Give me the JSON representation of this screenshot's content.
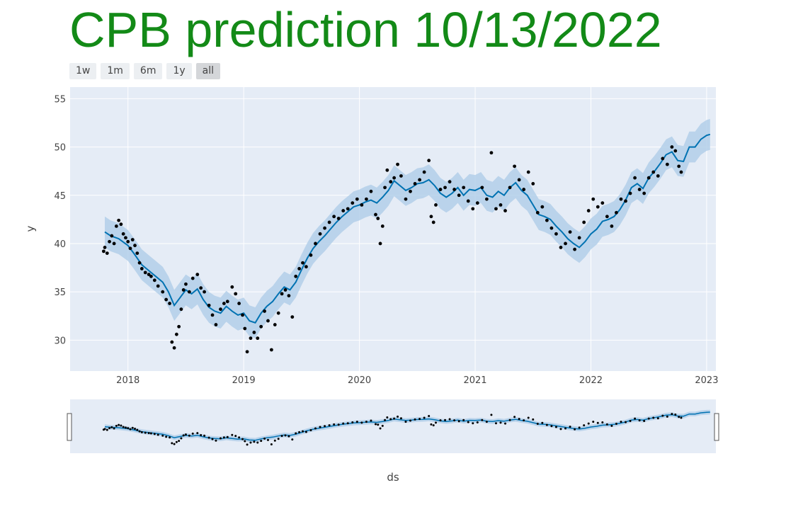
{
  "title": "CPB prediction 10/13/2022",
  "range_selector": [
    {
      "label": "1w",
      "active": false
    },
    {
      "label": "1m",
      "active": false
    },
    {
      "label": "6m",
      "active": false
    },
    {
      "label": "1y",
      "active": false
    },
    {
      "label": "all",
      "active": true
    }
  ],
  "colors": {
    "title": "#138a17",
    "plot_bg": "#e5ecf6",
    "forecast_line": "#0072b2",
    "uncertainty_band": "#b3cfe9",
    "actual_points": "#000000"
  },
  "chart_data": {
    "type": "line",
    "xlabel": "ds",
    "ylabel": "y",
    "xlim": [
      2017.5,
      2023.08
    ],
    "ylim": [
      26.8,
      56.2
    ],
    "x_ticks": [
      "2018",
      "2019",
      "2020",
      "2021",
      "2022",
      "2023"
    ],
    "y_ticks": [
      30,
      35,
      40,
      45,
      50,
      55
    ],
    "grid": true,
    "rangeslider": true,
    "series": [
      {
        "kind": "forecast",
        "x": [
          2017.8,
          2017.85,
          2017.92,
          2018.0,
          2018.05,
          2018.12,
          2018.2,
          2018.25,
          2018.3,
          2018.35,
          2018.4,
          2018.45,
          2018.5,
          2018.55,
          2018.6,
          2018.65,
          2018.7,
          2018.75,
          2018.8,
          2018.85,
          2018.9,
          2018.95,
          2019.0,
          2019.05,
          2019.1,
          2019.15,
          2019.2,
          2019.25,
          2019.3,
          2019.35,
          2019.4,
          2019.45,
          2019.5,
          2019.55,
          2019.6,
          2019.65,
          2019.7,
          2019.75,
          2019.8,
          2019.85,
          2019.9,
          2019.95,
          2020.0,
          2020.05,
          2020.1,
          2020.15,
          2020.2,
          2020.25,
          2020.3,
          2020.35,
          2020.4,
          2020.45,
          2020.5,
          2020.55,
          2020.6,
          2020.65,
          2020.7,
          2020.75,
          2020.8,
          2020.85,
          2020.9,
          2020.95,
          2021.0,
          2021.05,
          2021.1,
          2021.15,
          2021.2,
          2021.25,
          2021.3,
          2021.35,
          2021.4,
          2021.45,
          2021.5,
          2021.55,
          2021.6,
          2021.65,
          2021.7,
          2021.75,
          2021.8,
          2021.85,
          2021.9,
          2021.95,
          2022.0,
          2022.05,
          2022.1,
          2022.15,
          2022.2,
          2022.25,
          2022.3,
          2022.35,
          2022.4,
          2022.45,
          2022.5,
          2022.55,
          2022.6,
          2022.65,
          2022.7,
          2022.75,
          2022.8,
          2022.85,
          2022.9,
          2022.95,
          2023.0,
          2023.03
        ],
        "y": [
          41.2,
          40.8,
          40.5,
          39.8,
          39.0,
          37.8,
          37.0,
          36.5,
          36.0,
          35.0,
          33.6,
          34.4,
          35.2,
          34.8,
          35.3,
          34.2,
          33.4,
          33.0,
          32.8,
          33.5,
          33.0,
          32.6,
          32.8,
          32.0,
          31.8,
          32.8,
          33.5,
          34.0,
          34.8,
          35.5,
          35.2,
          36.0,
          37.3,
          38.5,
          39.5,
          40.2,
          40.8,
          41.5,
          42.2,
          42.8,
          43.3,
          43.8,
          44.0,
          44.3,
          44.5,
          44.2,
          44.8,
          45.5,
          46.5,
          46.0,
          45.5,
          45.8,
          46.2,
          46.3,
          46.6,
          46.0,
          45.2,
          44.8,
          45.2,
          45.8,
          45.0,
          45.6,
          45.5,
          45.8,
          45.0,
          44.8,
          45.4,
          45.0,
          45.8,
          46.3,
          45.5,
          45.0,
          44.0,
          43.0,
          42.8,
          42.5,
          41.8,
          41.2,
          40.5,
          40.0,
          39.6,
          40.2,
          41.0,
          41.5,
          42.3,
          42.5,
          42.8,
          43.5,
          44.5,
          45.8,
          46.2,
          45.7,
          46.8,
          47.5,
          48.3,
          49.2,
          49.5,
          48.6,
          48.5,
          50.0,
          50.0,
          50.8,
          51.2,
          51.3
        ],
        "band_half_width": 1.6
      },
      {
        "kind": "actual",
        "x": [
          2017.79,
          2017.8,
          2017.82,
          2017.84,
          2017.86,
          2017.88,
          2017.9,
          2017.92,
          2017.94,
          2017.96,
          2017.98,
          2018.0,
          2018.02,
          2018.04,
          2018.06,
          2018.08,
          2018.1,
          2018.12,
          2018.15,
          2018.18,
          2018.2,
          2018.23,
          2018.26,
          2018.3,
          2018.33,
          2018.36,
          2018.38,
          2018.4,
          2018.42,
          2018.44,
          2018.46,
          2018.48,
          2018.5,
          2018.53,
          2018.56,
          2018.6,
          2018.63,
          2018.66,
          2018.7,
          2018.73,
          2018.76,
          2018.8,
          2018.83,
          2018.86,
          2018.9,
          2018.93,
          2018.96,
          2018.99,
          2019.01,
          2019.03,
          2019.06,
          2019.09,
          2019.12,
          2019.15,
          2019.18,
          2019.21,
          2019.24,
          2019.27,
          2019.3,
          2019.33,
          2019.36,
          2019.39,
          2019.42,
          2019.45,
          2019.48,
          2019.51,
          2019.54,
          2019.58,
          2019.62,
          2019.66,
          2019.7,
          2019.74,
          2019.78,
          2019.82,
          2019.86,
          2019.9,
          2019.94,
          2019.98,
          2020.02,
          2020.06,
          2020.1,
          2020.14,
          2020.16,
          2020.18,
          2020.2,
          2020.22,
          2020.24,
          2020.27,
          2020.3,
          2020.33,
          2020.36,
          2020.4,
          2020.44,
          2020.48,
          2020.52,
          2020.56,
          2020.6,
          2020.62,
          2020.64,
          2020.66,
          2020.7,
          2020.74,
          2020.78,
          2020.82,
          2020.86,
          2020.9,
          2020.94,
          2020.98,
          2021.02,
          2021.06,
          2021.1,
          2021.14,
          2021.18,
          2021.22,
          2021.26,
          2021.3,
          2021.34,
          2021.38,
          2021.42,
          2021.46,
          2021.5,
          2021.54,
          2021.58,
          2021.62,
          2021.66,
          2021.7,
          2021.74,
          2021.78,
          2021.82,
          2021.86,
          2021.9,
          2021.94,
          2021.98,
          2022.02,
          2022.06,
          2022.1,
          2022.14,
          2022.18,
          2022.22,
          2022.26,
          2022.3,
          2022.34,
          2022.38,
          2022.42,
          2022.46,
          2022.5,
          2022.54,
          2022.58,
          2022.62,
          2022.66,
          2022.7,
          2022.73,
          2022.76,
          2022.78
        ],
        "y": [
          39.2,
          39.6,
          39.0,
          40.2,
          40.8,
          40.0,
          41.8,
          42.4,
          42.0,
          41.0,
          40.6,
          40.2,
          39.5,
          40.4,
          39.8,
          39.0,
          38.0,
          37.4,
          37.0,
          36.8,
          36.6,
          36.2,
          35.6,
          35.0,
          34.2,
          33.8,
          29.8,
          29.2,
          30.6,
          31.4,
          33.2,
          35.2,
          35.8,
          35.0,
          36.4,
          36.8,
          35.4,
          35.0,
          33.6,
          32.6,
          31.6,
          33.2,
          33.8,
          34.0,
          35.5,
          34.8,
          33.8,
          32.6,
          31.2,
          28.8,
          30.2,
          30.8,
          30.2,
          31.4,
          33.0,
          32.0,
          29.0,
          31.6,
          32.8,
          34.8,
          35.2,
          34.6,
          32.4,
          36.6,
          37.4,
          38.0,
          37.6,
          38.8,
          40.0,
          41.0,
          41.6,
          42.2,
          42.8,
          42.6,
          43.4,
          43.6,
          44.2,
          44.6,
          44.0,
          44.6,
          45.4,
          43.0,
          42.6,
          40.0,
          41.8,
          45.8,
          47.6,
          46.4,
          46.8,
          48.2,
          47.0,
          44.6,
          45.4,
          46.2,
          46.6,
          47.4,
          48.6,
          42.8,
          42.2,
          44.0,
          45.6,
          45.8,
          46.4,
          45.6,
          45.0,
          45.8,
          44.4,
          43.6,
          44.2,
          45.8,
          44.6,
          49.4,
          43.6,
          44.0,
          43.4,
          45.8,
          48.0,
          46.6,
          45.6,
          47.4,
          46.2,
          43.2,
          43.8,
          42.4,
          41.6,
          41.0,
          39.6,
          40.0,
          41.2,
          39.4,
          40.6,
          42.2,
          43.4,
          44.6,
          43.8,
          44.2,
          42.8,
          41.8,
          43.2,
          44.6,
          44.4,
          45.2,
          46.8,
          45.6,
          45.2,
          46.8,
          47.4,
          47.0,
          48.8,
          48.2,
          50.0,
          49.6,
          48.0,
          47.4
        ]
      }
    ]
  }
}
